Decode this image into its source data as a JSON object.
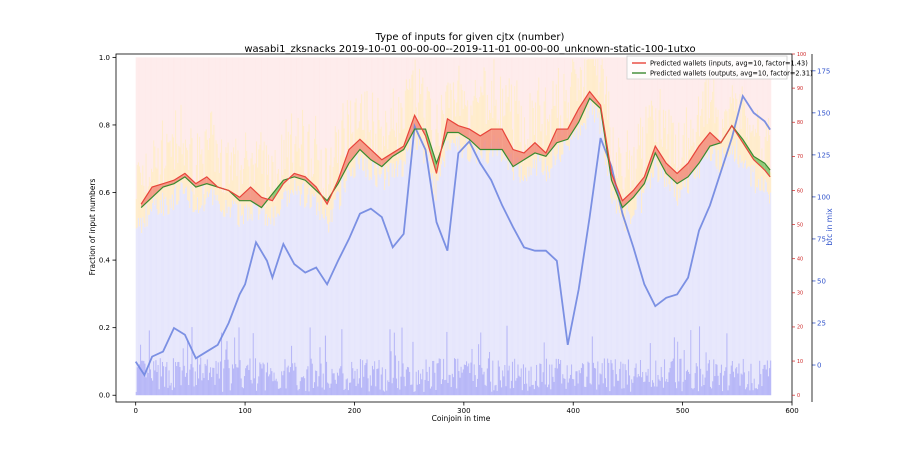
{
  "chart_data": {
    "type": "line",
    "title": "Type of inputs for given cjtx (number)",
    "subtitle": "wasabi1_zksnacks 2019-10-01 00-00-00--2019-11-01 00-00-00_unknown-static-100-1utxo",
    "xlabel": "Coinjoin in time",
    "ylabel": "Fraction of input numbers",
    "y2label": "",
    "y3label": "btc in mix",
    "xlim": [
      -18,
      600
    ],
    "ylim": [
      -0.02,
      1.01
    ],
    "y2lim": [
      -2,
      100
    ],
    "y3lim": [
      -22,
      185
    ],
    "x_ticks": [
      "0",
      "100",
      "200",
      "300",
      "400",
      "500",
      "600"
    ],
    "y_ticks": [
      "0.0",
      "0.2",
      "0.4",
      "0.6",
      "0.8",
      "1.0"
    ],
    "y2_ticks": [
      "0",
      "10",
      "20",
      "30",
      "40",
      "50",
      "60",
      "70",
      "80",
      "90",
      "100"
    ],
    "y3_ticks": [
      "0",
      "25",
      "50",
      "75",
      "100",
      "125",
      "150",
      "175"
    ],
    "grid": false,
    "legend_position": "top-right",
    "legend": [
      "Predicted wallets (inputs, avg=10, factor=1.43)",
      "Predicted wallets (outputs, avg=10, factor=2.31)"
    ],
    "colors": {
      "inputs_line": "#e8443a",
      "outputs_line": "#3a8a30",
      "fill_inputs_higher": "#f08070",
      "fill_outputs_higher": "#6cbf5c",
      "btc_line": "#6f86e0",
      "bars_blue": "#7b7bf0",
      "bars_blue_light": "#dcdcfb",
      "bars_orange": "#ffe0a8",
      "bars_red": "#fddada",
      "right_axis_red": "#cc2222",
      "right_axis_blue": "#3355cc"
    },
    "series": [
      {
        "name": "Predicted wallets (inputs, avg=10, factor=1.43)",
        "axis": "right-red",
        "x": [
          5,
          15,
          25,
          35,
          45,
          55,
          65,
          75,
          85,
          95,
          105,
          115,
          125,
          135,
          145,
          155,
          165,
          175,
          185,
          195,
          205,
          215,
          225,
          235,
          245,
          255,
          265,
          275,
          285,
          295,
          305,
          315,
          325,
          335,
          345,
          355,
          365,
          375,
          385,
          395,
          405,
          415,
          425,
          435,
          445,
          455,
          465,
          475,
          485,
          495,
          505,
          515,
          525,
          535,
          545,
          555,
          565,
          575,
          580
        ],
        "y": [
          56,
          61,
          62,
          63,
          65,
          62,
          64,
          61,
          60,
          58,
          61,
          58,
          57,
          62,
          65,
          64,
          61,
          56,
          63,
          72,
          75,
          72,
          69,
          71,
          73,
          82,
          76,
          65,
          81,
          79,
          78,
          76,
          78,
          78,
          72,
          71,
          74,
          71,
          78,
          78,
          84,
          89,
          85,
          65,
          57,
          60,
          64,
          73,
          68,
          65,
          68,
          73,
          77,
          74,
          79,
          74,
          69,
          66,
          64
        ]
      },
      {
        "name": "Predicted wallets (outputs, avg=10, factor=2.31)",
        "axis": "right-red",
        "x": [
          5,
          15,
          25,
          35,
          45,
          55,
          65,
          75,
          85,
          95,
          105,
          115,
          125,
          135,
          145,
          155,
          165,
          175,
          185,
          195,
          205,
          215,
          225,
          235,
          245,
          255,
          265,
          275,
          285,
          295,
          305,
          315,
          325,
          335,
          345,
          355,
          365,
          375,
          385,
          395,
          405,
          415,
          425,
          435,
          445,
          455,
          465,
          475,
          485,
          495,
          505,
          515,
          525,
          535,
          545,
          555,
          565,
          575,
          580
        ],
        "y": [
          55,
          58,
          61,
          62,
          64,
          61,
          62,
          61,
          60,
          57,
          57,
          55,
          59,
          63,
          64,
          63,
          60,
          57,
          62,
          68,
          72,
          69,
          67,
          70,
          72,
          78,
          78,
          68,
          77,
          77,
          75,
          72,
          72,
          72,
          67,
          69,
          71,
          70,
          74,
          75,
          80,
          87,
          84,
          63,
          55,
          58,
          62,
          71,
          65,
          62,
          64,
          68,
          73,
          74,
          79,
          75,
          70,
          68,
          66
        ]
      },
      {
        "name": "",
        "axis": "btc in mix",
        "x": [
          0,
          8,
          15,
          25,
          35,
          45,
          55,
          65,
          75,
          85,
          95,
          100,
          110,
          120,
          125,
          135,
          145,
          155,
          165,
          175,
          185,
          195,
          205,
          215,
          225,
          235,
          245,
          255,
          265,
          275,
          285,
          295,
          305,
          315,
          325,
          335,
          345,
          355,
          365,
          375,
          385,
          395,
          405,
          415,
          425,
          435,
          445,
          455,
          465,
          475,
          485,
          495,
          505,
          515,
          525,
          535,
          545,
          555,
          565,
          575,
          580
        ],
        "y": [
          2,
          -6,
          5,
          8,
          22,
          18,
          4,
          8,
          12,
          25,
          42,
          48,
          73,
          62,
          52,
          72,
          60,
          55,
          58,
          48,
          62,
          75,
          90,
          93,
          88,
          70,
          78,
          142,
          128,
          85,
          68,
          126,
          133,
          120,
          110,
          95,
          82,
          70,
          68,
          68,
          62,
          12,
          45,
          88,
          135,
          118,
          90,
          70,
          48,
          35,
          40,
          42,
          52,
          80,
          95,
          115,
          135,
          160,
          150,
          145,
          140
        ]
      }
    ]
  }
}
